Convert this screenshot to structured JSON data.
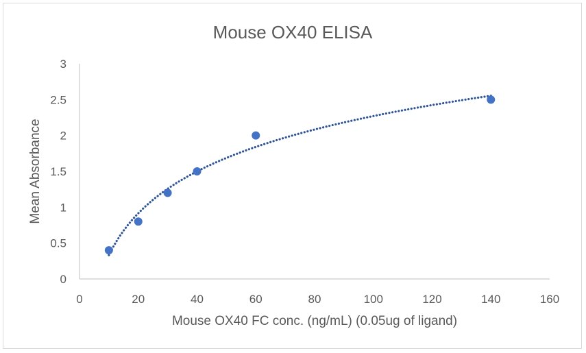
{
  "chart_data": {
    "type": "scatter",
    "title": "Mouse OX40 ELISA",
    "xlabel": "Mouse OX40 FC conc. (ng/mL) (0.05ug of ligand)",
    "ylabel": "Mean Absorbance",
    "xlim": [
      0,
      160
    ],
    "ylim": [
      0,
      3
    ],
    "x_ticks": [
      "0",
      "20",
      "40",
      "60",
      "80",
      "100",
      "120",
      "140",
      "160"
    ],
    "y_ticks": [
      "0",
      "0.5",
      "1",
      "1.5",
      "2",
      "2.5",
      "3"
    ],
    "grid": false,
    "series": [
      {
        "x": [
          10,
          20,
          30,
          40,
          60,
          140
        ],
        "y": [
          0.4,
          0.8,
          1.2,
          1.5,
          2.0,
          2.5
        ]
      }
    ],
    "trendline": {
      "type": "logarithmic",
      "style": "dotted",
      "x_range": [
        10,
        140
      ]
    },
    "colors": {
      "marker": "#4472c4",
      "trendline": "#2f5597",
      "axis": "#bfbfbf",
      "text": "#595959"
    }
  }
}
